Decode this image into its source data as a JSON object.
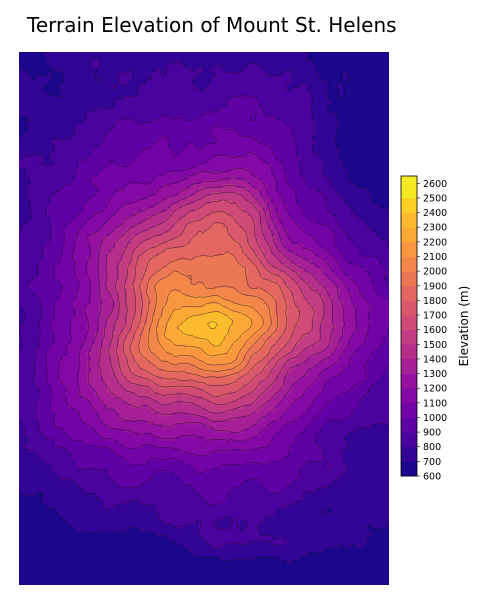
{
  "chart_data": {
    "type": "heatmap",
    "title": "Terrain Elevation of Mount St. Helens",
    "colorbar_label": "Elevation (m)",
    "colorbar_ticks": [
      600,
      700,
      800,
      900,
      1000,
      1100,
      1200,
      1300,
      1400,
      1500,
      1600,
      1700,
      1800,
      1900,
      2000,
      2100,
      2200,
      2300,
      2400,
      2500,
      2600
    ],
    "colorbar_range": [
      600,
      2650
    ],
    "contour_levels": [
      700,
      800,
      900,
      1000,
      1100,
      1200,
      1300,
      1400,
      1500,
      1600,
      1700,
      1800,
      1900,
      2000,
      2100,
      2200,
      2300,
      2400,
      2500
    ],
    "colormap": [
      "#0d0887",
      "#41049d",
      "#6a00a8",
      "#8f0da4",
      "#b12a90",
      "#cc4778",
      "#e16462",
      "#f2844b",
      "#fca636",
      "#fcce25",
      "#f0f921"
    ],
    "grid": false,
    "axes_visible": false,
    "summit_elevation_approx": 2550,
    "crater_floor_elevation_approx": 1900,
    "lowland_elevation_range": [
      700,
      1100
    ]
  }
}
